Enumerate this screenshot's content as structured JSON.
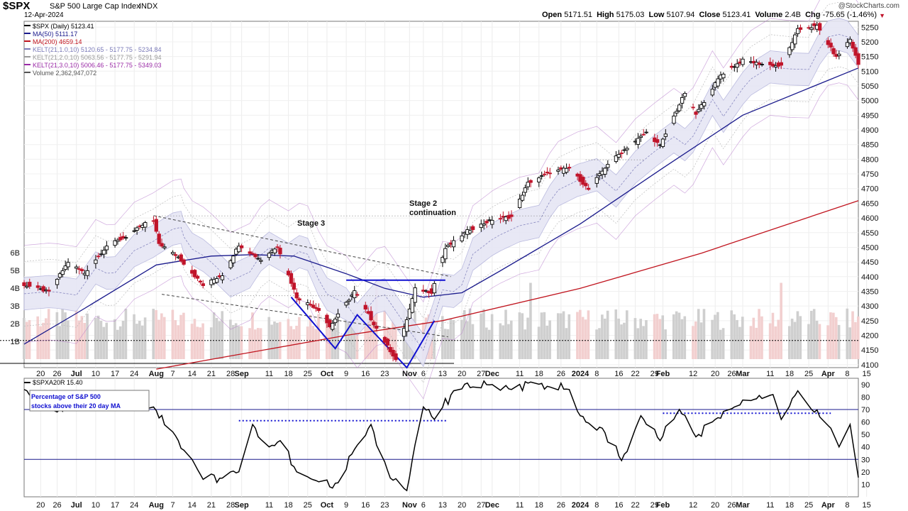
{
  "header": {
    "symbol": "$SPX",
    "name": "S&P 500 Large Cap Index",
    "exchange": "INDX",
    "date": "12-Apr-2024",
    "watermark": "@StockCharts.com",
    "ohlc": [
      {
        "label": "Open",
        "value": "5171.51"
      },
      {
        "label": "High",
        "value": "5175.03"
      },
      {
        "label": "Low",
        "value": "5107.94"
      },
      {
        "label": "Close",
        "value": "5123.41"
      },
      {
        "label": "Volume",
        "value": "2.4B"
      },
      {
        "label": "Chg",
        "value": "-75.65 (-1.46%)"
      }
    ]
  },
  "legend": [
    {
      "text": "$SPX (Daily) 5123.41",
      "color": "#000000"
    },
    {
      "text": "MA(50) 5111.17",
      "color": "#1a1a8c"
    },
    {
      "text": "MA(200) 4659.14",
      "color": "#c0141e"
    },
    {
      "text": "KELT(21,1.0,10) 5120.65 - 5177.75 - 5234.84",
      "color": "#7a7ab8"
    },
    {
      "text": "KELT(21,2.0,10) 5063.56 - 5177.75 - 5291.94",
      "color": "#999999"
    },
    {
      "text": "KELT(21,3.0,10) 5006.46 - 5177.75 - 5349.03",
      "color": "#9a2aa6"
    },
    {
      "text": "Volume 2,362,947,072",
      "color": "#555555"
    }
  ],
  "lower_legend": "$SPXA20R 15.40",
  "lower_note": [
    "Percentage of S&P 500",
    "stocks above their 20 day MA"
  ],
  "annotations": {
    "stage3": "Stage 3",
    "stage2_l1": "Stage 2",
    "stage2_l2": "continuation"
  },
  "colors": {
    "up": "#000000",
    "down": "#c0142a",
    "ma50": "#1a1a8c",
    "ma200": "#c0141e",
    "kelt1_fill": "#e6e6f5",
    "kelt2": "#bbbbbb",
    "kelt3": "#b070c8",
    "vol_up": "#cfcfcf",
    "vol_down": "#f2cfcf",
    "pattern": "#1010d0"
  },
  "chart_data": [
    {
      "type": "candlestick",
      "title": "$SPX S&P 500 Large Cap Index",
      "ylim": [
        4090,
        5270
      ],
      "y_ticks": [
        4100,
        4150,
        4200,
        4250,
        4300,
        4350,
        4400,
        4450,
        4500,
        4550,
        4600,
        4650,
        4700,
        4750,
        4800,
        4850,
        4900,
        4950,
        5000,
        5050,
        5100,
        5150,
        5200,
        5250
      ],
      "volume_ticks": [
        "1B",
        "2B",
        "3B",
        "4B",
        "5B",
        "6B"
      ],
      "volume_ylim_billions": [
        0,
        7
      ],
      "x_tick_labels": [
        {
          "d": "2023-06-20",
          "label": "20"
        },
        {
          "d": "2023-06-26",
          "label": "26"
        },
        {
          "d": "2023-07-03",
          "label": "Jul",
          "bold": true
        },
        {
          "d": "2023-07-10",
          "label": "10"
        },
        {
          "d": "2023-07-17",
          "label": "17"
        },
        {
          "d": "2023-07-24",
          "label": "24"
        },
        {
          "d": "2023-08-01",
          "label": "Aug",
          "bold": true
        },
        {
          "d": "2023-08-07",
          "label": "7"
        },
        {
          "d": "2023-08-14",
          "label": "14"
        },
        {
          "d": "2023-08-21",
          "label": "21"
        },
        {
          "d": "2023-08-28",
          "label": "28"
        },
        {
          "d": "2023-09-01",
          "label": "Sep",
          "bold": true
        },
        {
          "d": "2023-09-11",
          "label": "11"
        },
        {
          "d": "2023-09-18",
          "label": "18"
        },
        {
          "d": "2023-09-25",
          "label": "25"
        },
        {
          "d": "2023-10-02",
          "label": "Oct",
          "bold": true
        },
        {
          "d": "2023-10-09",
          "label": "9"
        },
        {
          "d": "2023-10-16",
          "label": "16"
        },
        {
          "d": "2023-10-23",
          "label": "23"
        },
        {
          "d": "2023-11-01",
          "label": "Nov",
          "bold": true
        },
        {
          "d": "2023-11-06",
          "label": "6"
        },
        {
          "d": "2023-11-13",
          "label": "13"
        },
        {
          "d": "2023-11-20",
          "label": "20"
        },
        {
          "d": "2023-11-27",
          "label": "27"
        },
        {
          "d": "2023-12-01",
          "label": "Dec",
          "bold": true
        },
        {
          "d": "2023-12-11",
          "label": "11"
        },
        {
          "d": "2023-12-18",
          "label": "18"
        },
        {
          "d": "2023-12-26",
          "label": "26"
        },
        {
          "d": "2024-01-02",
          "label": "2024",
          "bold": true
        },
        {
          "d": "2024-01-08",
          "label": "8"
        },
        {
          "d": "2024-01-16",
          "label": "16"
        },
        {
          "d": "2024-01-22",
          "label": "22"
        },
        {
          "d": "2024-01-29",
          "label": "29"
        },
        {
          "d": "2024-02-01",
          "label": "Feb",
          "bold": true
        },
        {
          "d": "2024-02-12",
          "label": "12"
        },
        {
          "d": "2024-02-20",
          "label": "20"
        },
        {
          "d": "2024-02-26",
          "label": "26"
        },
        {
          "d": "2024-03-01",
          "label": "Mar",
          "bold": true
        },
        {
          "d": "2024-03-11",
          "label": "11"
        },
        {
          "d": "2024-03-18",
          "label": "18"
        },
        {
          "d": "2024-03-25",
          "label": "25"
        },
        {
          "d": "2024-04-01",
          "label": "Apr",
          "bold": true
        },
        {
          "d": "2024-04-08",
          "label": "8"
        },
        {
          "d": "2024-04-15",
          "label": "15"
        }
      ],
      "close_path": [
        {
          "d": "2023-06-14",
          "v": 4372
        },
        {
          "d": "2023-06-23",
          "v": 4348
        },
        {
          "d": "2023-06-30",
          "v": 4450
        },
        {
          "d": "2023-07-06",
          "v": 4412
        },
        {
          "d": "2023-07-14",
          "v": 4505
        },
        {
          "d": "2023-07-21",
          "v": 4536
        },
        {
          "d": "2023-07-28",
          "v": 4582
        },
        {
          "d": "2023-07-31",
          "v": 4588
        },
        {
          "d": "2023-08-02",
          "v": 4513
        },
        {
          "d": "2023-08-09",
          "v": 4467
        },
        {
          "d": "2023-08-18",
          "v": 4370
        },
        {
          "d": "2023-08-25",
          "v": 4406
        },
        {
          "d": "2023-08-31",
          "v": 4508
        },
        {
          "d": "2023-09-08",
          "v": 4457
        },
        {
          "d": "2023-09-14",
          "v": 4505
        },
        {
          "d": "2023-09-21",
          "v": 4330
        },
        {
          "d": "2023-09-29",
          "v": 4288
        },
        {
          "d": "2023-10-03",
          "v": 4229
        },
        {
          "d": "2023-10-12",
          "v": 4350
        },
        {
          "d": "2023-10-20",
          "v": 4224
        },
        {
          "d": "2023-10-27",
          "v": 4117
        },
        {
          "d": "2023-11-03",
          "v": 4358
        },
        {
          "d": "2023-11-09",
          "v": 4347
        },
        {
          "d": "2023-11-14",
          "v": 4496
        },
        {
          "d": "2023-11-22",
          "v": 4556
        },
        {
          "d": "2023-12-01",
          "v": 4594
        },
        {
          "d": "2023-12-08",
          "v": 4604
        },
        {
          "d": "2023-12-14",
          "v": 4719
        },
        {
          "d": "2023-12-22",
          "v": 4755
        },
        {
          "d": "2023-12-29",
          "v": 4770
        },
        {
          "d": "2024-01-05",
          "v": 4697
        },
        {
          "d": "2024-01-12",
          "v": 4784
        },
        {
          "d": "2024-01-19",
          "v": 4840
        },
        {
          "d": "2024-01-26",
          "v": 4891
        },
        {
          "d": "2024-01-31",
          "v": 4846
        },
        {
          "d": "2024-02-09",
          "v": 5026
        },
        {
          "d": "2024-02-13",
          "v": 4953
        },
        {
          "d": "2024-02-22",
          "v": 5087
        },
        {
          "d": "2024-03-01",
          "v": 5137
        },
        {
          "d": "2024-03-08",
          "v": 5124
        },
        {
          "d": "2024-03-15",
          "v": 5117
        },
        {
          "d": "2024-03-21",
          "v": 5241
        },
        {
          "d": "2024-03-28",
          "v": 5254
        },
        {
          "d": "2024-04-04",
          "v": 5147
        },
        {
          "d": "2024-04-09",
          "v": 5209
        },
        {
          "d": "2024-04-12",
          "v": 5123
        }
      ],
      "ma50_path": [
        {
          "d": "2023-06-14",
          "v": 4170
        },
        {
          "d": "2023-07-03",
          "v": 4275
        },
        {
          "d": "2023-08-01",
          "v": 4440
        },
        {
          "d": "2023-08-21",
          "v": 4470
        },
        {
          "d": "2023-09-05",
          "v": 4475
        },
        {
          "d": "2023-09-20",
          "v": 4470
        },
        {
          "d": "2023-10-09",
          "v": 4410
        },
        {
          "d": "2023-10-23",
          "v": 4360
        },
        {
          "d": "2023-11-06",
          "v": 4330
        },
        {
          "d": "2023-11-20",
          "v": 4345
        },
        {
          "d": "2023-12-04",
          "v": 4420
        },
        {
          "d": "2024-01-02",
          "v": 4580
        },
        {
          "d": "2024-02-01",
          "v": 4770
        },
        {
          "d": "2024-03-01",
          "v": 4950
        },
        {
          "d": "2024-04-12",
          "v": 5111
        }
      ],
      "ma200_path": [
        {
          "d": "2023-08-01",
          "v": 4085
        },
        {
          "d": "2023-10-09",
          "v": 4200
        },
        {
          "d": "2023-11-13",
          "v": 4250
        },
        {
          "d": "2024-01-02",
          "v": 4360
        },
        {
          "d": "2024-02-15",
          "v": 4480
        },
        {
          "d": "2024-04-12",
          "v": 4659
        }
      ],
      "volume_billions": {
        "typical": 2.2,
        "spike_dates": [
          "2023-10-20",
          "2023-12-15",
          "2024-03-15"
        ],
        "spike_value": 4.3
      }
    },
    {
      "type": "line",
      "title": "$SPXA20R",
      "ylim": [
        0,
        95
      ],
      "y_ticks": [
        10,
        20,
        30,
        40,
        50,
        60,
        70,
        80,
        90
      ],
      "reference_lines": [
        30,
        70
      ],
      "x_tick_labels": "same as price panel",
      "series": [
        {
          "name": "$SPXA20R",
          "points": [
            {
              "d": "2023-06-14",
              "v": 86
            },
            {
              "d": "2023-06-20",
              "v": 80
            },
            {
              "d": "2023-06-26",
              "v": 68
            },
            {
              "d": "2023-07-03",
              "v": 82
            },
            {
              "d": "2023-07-10",
              "v": 75
            },
            {
              "d": "2023-07-17",
              "v": 84
            },
            {
              "d": "2023-07-24",
              "v": 78
            },
            {
              "d": "2023-07-31",
              "v": 72
            },
            {
              "d": "2023-08-07",
              "v": 52
            },
            {
              "d": "2023-08-14",
              "v": 30
            },
            {
              "d": "2023-08-18",
              "v": 14
            },
            {
              "d": "2023-08-25",
              "v": 15
            },
            {
              "d": "2023-08-31",
              "v": 20
            },
            {
              "d": "2023-09-05",
              "v": 58
            },
            {
              "d": "2023-09-11",
              "v": 40
            },
            {
              "d": "2023-09-15",
              "v": 45
            },
            {
              "d": "2023-09-21",
              "v": 20
            },
            {
              "d": "2023-09-29",
              "v": 12
            },
            {
              "d": "2023-10-04",
              "v": 7
            },
            {
              "d": "2023-10-12",
              "v": 38
            },
            {
              "d": "2023-10-18",
              "v": 58
            },
            {
              "d": "2023-10-25",
              "v": 15
            },
            {
              "d": "2023-10-31",
              "v": 5
            },
            {
              "d": "2023-11-06",
              "v": 72
            },
            {
              "d": "2023-11-10",
              "v": 62
            },
            {
              "d": "2023-11-17",
              "v": 85
            },
            {
              "d": "2023-11-24",
              "v": 88
            },
            {
              "d": "2023-12-01",
              "v": 90
            },
            {
              "d": "2023-12-08",
              "v": 86
            },
            {
              "d": "2023-12-15",
              "v": 92
            },
            {
              "d": "2023-12-22",
              "v": 88
            },
            {
              "d": "2023-12-29",
              "v": 86
            },
            {
              "d": "2024-01-04",
              "v": 60
            },
            {
              "d": "2024-01-10",
              "v": 55
            },
            {
              "d": "2024-01-17",
              "v": 29
            },
            {
              "d": "2024-01-24",
              "v": 65
            },
            {
              "d": "2024-01-31",
              "v": 45
            },
            {
              "d": "2024-02-07",
              "v": 70
            },
            {
              "d": "2024-02-13",
              "v": 48
            },
            {
              "d": "2024-02-20",
              "v": 62
            },
            {
              "d": "2024-02-27",
              "v": 72
            },
            {
              "d": "2024-03-05",
              "v": 78
            },
            {
              "d": "2024-03-12",
              "v": 82
            },
            {
              "d": "2024-03-15",
              "v": 62
            },
            {
              "d": "2024-03-21",
              "v": 85
            },
            {
              "d": "2024-03-26",
              "v": 70
            },
            {
              "d": "2024-04-02",
              "v": 55
            },
            {
              "d": "2024-04-05",
              "v": 40
            },
            {
              "d": "2024-04-09",
              "v": 58
            },
            {
              "d": "2024-04-12",
              "v": 15.4
            }
          ]
        }
      ]
    }
  ]
}
